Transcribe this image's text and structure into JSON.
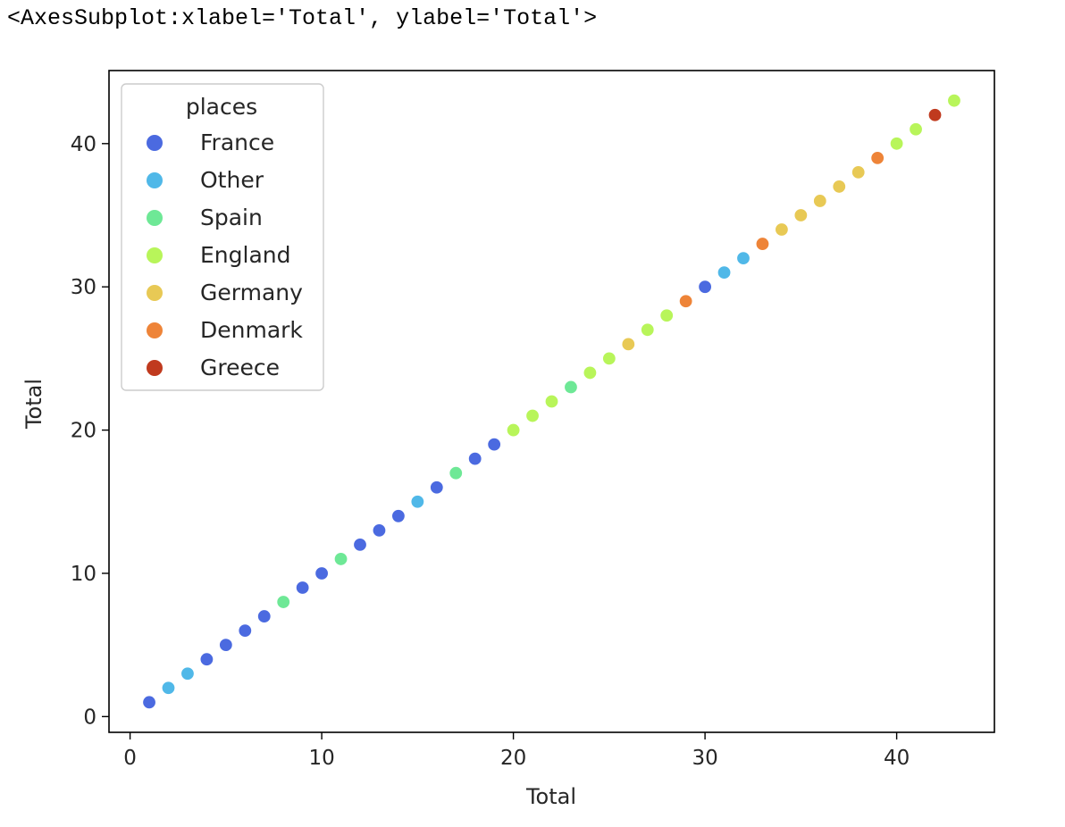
{
  "output_repr": "<AxesSubplot:xlabel='Total', ylabel='Total'>",
  "chart_data": {
    "type": "scatter",
    "xlabel": "Total",
    "ylabel": "Total",
    "xlim": [
      -1.1,
      45.1
    ],
    "ylim": [
      -1.1,
      45.1
    ],
    "xticks": [
      0,
      10,
      20,
      30,
      40
    ],
    "yticks": [
      0,
      10,
      20,
      30,
      40
    ],
    "grid": false,
    "legend": {
      "title": "places",
      "placement": "upper-left",
      "entries": [
        {
          "name": "France",
          "color": "#4b6ae0"
        },
        {
          "name": "Other",
          "color": "#50b8e8"
        },
        {
          "name": "Spain",
          "color": "#6ee896"
        },
        {
          "name": "England",
          "color": "#b8f55a"
        },
        {
          "name": "Germany",
          "color": "#e8c955"
        },
        {
          "name": "Denmark",
          "color": "#ee8438"
        },
        {
          "name": "Greece",
          "color": "#c03a1e"
        }
      ]
    },
    "points": [
      {
        "x": 1,
        "y": 1,
        "place": "France"
      },
      {
        "x": 2,
        "y": 2,
        "place": "Other"
      },
      {
        "x": 3,
        "y": 3,
        "place": "Other"
      },
      {
        "x": 4,
        "y": 4,
        "place": "France"
      },
      {
        "x": 5,
        "y": 5,
        "place": "France"
      },
      {
        "x": 6,
        "y": 6,
        "place": "France"
      },
      {
        "x": 7,
        "y": 7,
        "place": "France"
      },
      {
        "x": 8,
        "y": 8,
        "place": "Spain"
      },
      {
        "x": 9,
        "y": 9,
        "place": "France"
      },
      {
        "x": 10,
        "y": 10,
        "place": "France"
      },
      {
        "x": 11,
        "y": 11,
        "place": "Spain"
      },
      {
        "x": 12,
        "y": 12,
        "place": "France"
      },
      {
        "x": 13,
        "y": 13,
        "place": "France"
      },
      {
        "x": 14,
        "y": 14,
        "place": "France"
      },
      {
        "x": 15,
        "y": 15,
        "place": "Other"
      },
      {
        "x": 16,
        "y": 16,
        "place": "France"
      },
      {
        "x": 17,
        "y": 17,
        "place": "Spain"
      },
      {
        "x": 18,
        "y": 18,
        "place": "France"
      },
      {
        "x": 19,
        "y": 19,
        "place": "France"
      },
      {
        "x": 20,
        "y": 20,
        "place": "England"
      },
      {
        "x": 21,
        "y": 21,
        "place": "England"
      },
      {
        "x": 22,
        "y": 22,
        "place": "England"
      },
      {
        "x": 23,
        "y": 23,
        "place": "Spain"
      },
      {
        "x": 24,
        "y": 24,
        "place": "England"
      },
      {
        "x": 25,
        "y": 25,
        "place": "England"
      },
      {
        "x": 26,
        "y": 26,
        "place": "Germany"
      },
      {
        "x": 27,
        "y": 27,
        "place": "England"
      },
      {
        "x": 28,
        "y": 28,
        "place": "England"
      },
      {
        "x": 29,
        "y": 29,
        "place": "Denmark"
      },
      {
        "x": 30,
        "y": 30,
        "place": "France"
      },
      {
        "x": 31,
        "y": 31,
        "place": "Other"
      },
      {
        "x": 32,
        "y": 32,
        "place": "Other"
      },
      {
        "x": 33,
        "y": 33,
        "place": "Denmark"
      },
      {
        "x": 34,
        "y": 34,
        "place": "Germany"
      },
      {
        "x": 35,
        "y": 35,
        "place": "Germany"
      },
      {
        "x": 36,
        "y": 36,
        "place": "Germany"
      },
      {
        "x": 37,
        "y": 37,
        "place": "Germany"
      },
      {
        "x": 38,
        "y": 38,
        "place": "Germany"
      },
      {
        "x": 39,
        "y": 39,
        "place": "Denmark"
      },
      {
        "x": 40,
        "y": 40,
        "place": "England"
      },
      {
        "x": 41,
        "y": 41,
        "place": "England"
      },
      {
        "x": 42,
        "y": 42,
        "place": "Greece"
      },
      {
        "x": 43,
        "y": 43,
        "place": "England"
      }
    ]
  }
}
